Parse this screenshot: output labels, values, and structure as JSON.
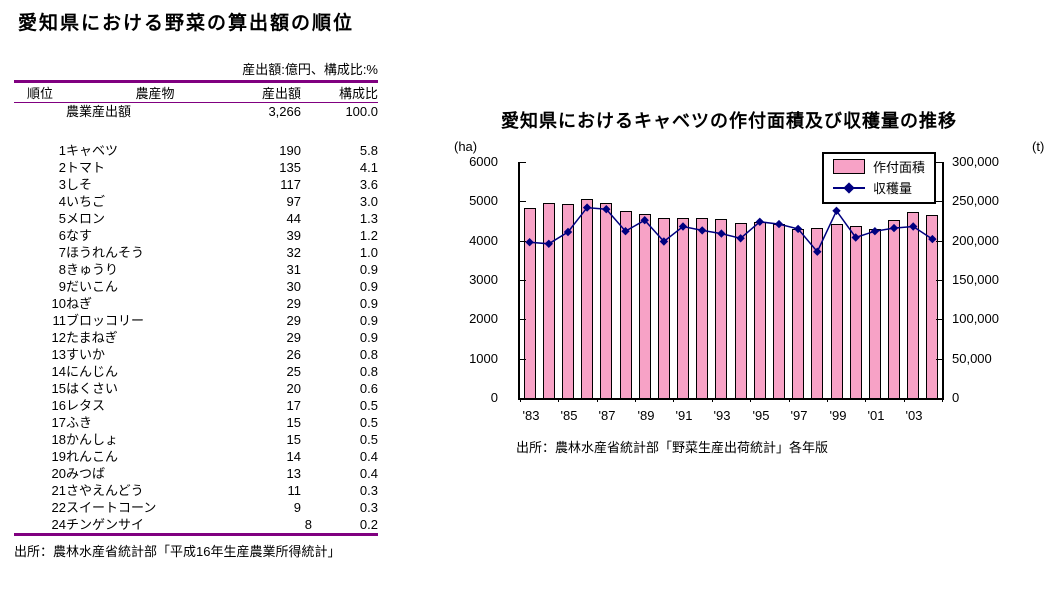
{
  "left_panel": {
    "title": "愛知県における野菜の算出額の順位",
    "units_note": "産出額:億円、構成比:%",
    "table": {
      "headers": [
        "順位",
        "農産物",
        "産出額",
        "構成比"
      ],
      "summary_row": {
        "rank": "",
        "name": "農業産出額",
        "output": "3,266",
        "share": "100.0"
      },
      "rows": [
        {
          "rank": "1",
          "name": "キャベツ",
          "output": "190",
          "share": "5.8"
        },
        {
          "rank": "2",
          "name": "トマト",
          "output": "135",
          "share": "4.1"
        },
        {
          "rank": "3",
          "name": "しそ",
          "output": "117",
          "share": "3.6"
        },
        {
          "rank": "4",
          "name": "いちご",
          "output": "97",
          "share": "3.0"
        },
        {
          "rank": "5",
          "name": "メロン",
          "output": "44",
          "share": "1.3"
        },
        {
          "rank": "6",
          "name": "なす",
          "output": "39",
          "share": "1.2"
        },
        {
          "rank": "7",
          "name": "ほうれんそう",
          "output": "32",
          "share": "1.0"
        },
        {
          "rank": "8",
          "name": "きゅうり",
          "output": "31",
          "share": "0.9"
        },
        {
          "rank": "9",
          "name": "だいこん",
          "output": "30",
          "share": "0.9"
        },
        {
          "rank": "10",
          "name": "ねぎ",
          "output": "29",
          "share": "0.9"
        },
        {
          "rank": "11",
          "name": "ブロッコリー",
          "output": "29",
          "share": "0.9"
        },
        {
          "rank": "12",
          "name": "たまねぎ",
          "output": "29",
          "share": "0.9"
        },
        {
          "rank": "13",
          "name": "すいか",
          "output": "26",
          "share": "0.8"
        },
        {
          "rank": "14",
          "name": "にんじん",
          "output": "25",
          "share": "0.8"
        },
        {
          "rank": "15",
          "name": "はくさい",
          "output": "20",
          "share": "0.6"
        },
        {
          "rank": "16",
          "name": "レタス",
          "output": "17",
          "share": "0.5"
        },
        {
          "rank": "17",
          "name": "ふき",
          "output": "15",
          "share": "0.5"
        },
        {
          "rank": "18",
          "name": "かんしょ",
          "output": "15",
          "share": "0.5"
        },
        {
          "rank": "19",
          "name": "れんこん",
          "output": "14",
          "share": "0.4"
        },
        {
          "rank": "20",
          "name": "みつば",
          "output": "13",
          "share": "0.4"
        },
        {
          "rank": "21",
          "name": "さやえんどう",
          "output": "11",
          "share": "0.3"
        },
        {
          "rank": "22",
          "name": "スイートコーン",
          "output": "9",
          "share": "0.3"
        },
        {
          "rank": "24",
          "name": "チンゲンサイ",
          "output": "8",
          "share": "0.2"
        }
      ],
      "rule_color": "#800080"
    },
    "source": "出所：農林水産省統計部「平成16年生産農業所得統計」"
  },
  "chart": {
    "title": "愛知県におけるキャベツの作付面積及び収穫量の推移",
    "left_axis_unit": "(ha)",
    "right_axis_unit": "(t)",
    "legend": [
      {
        "label": "作付面積",
        "type": "bar"
      },
      {
        "label": "収穫量",
        "type": "line"
      }
    ],
    "source": "出所：農林水産省統計部「野菜生産出荷統計」各年版",
    "colors": {
      "bar_fill": "#F7A2C6",
      "bar_border": "#000000",
      "line": "#000080",
      "rule": "#800080"
    }
  },
  "chart_data": {
    "type": "bar",
    "x": [
      1983,
      1984,
      1985,
      1986,
      1987,
      1988,
      1989,
      1990,
      1991,
      1992,
      1993,
      1994,
      1995,
      1996,
      1997,
      1998,
      1999,
      2000,
      2001,
      2002,
      2003,
      2004
    ],
    "x_tick_labels": [
      "'83",
      "'85",
      "'87",
      "'89",
      "'91",
      "'93",
      "'95",
      "'97",
      "'99",
      "'01",
      "'03"
    ],
    "series": [
      {
        "name": "作付面積",
        "type": "bar",
        "axis": "left",
        "unit": "ha",
        "values": [
          4830,
          4960,
          4930,
          5060,
          4950,
          4760,
          4680,
          4580,
          4570,
          4580,
          4540,
          4450,
          4480,
          4430,
          4300,
          4310,
          4430,
          4380,
          4290,
          4520,
          4740,
          4650
        ]
      },
      {
        "name": "収穫量",
        "type": "line",
        "axis": "right",
        "unit": "t",
        "values": [
          198000,
          196000,
          211000,
          242000,
          240000,
          212000,
          226000,
          199000,
          218000,
          213000,
          209000,
          203000,
          224000,
          221000,
          215000,
          186000,
          238000,
          204000,
          212000,
          216000,
          218000,
          202000
        ]
      }
    ],
    "left_axis": {
      "label": "(ha)",
      "min": 0,
      "max": 6000,
      "step": 1000,
      "tick_labels": [
        "0",
        "1000",
        "2000",
        "3000",
        "4000",
        "5000",
        "6000"
      ]
    },
    "right_axis": {
      "label": "(t)",
      "min": 0,
      "max": 300000,
      "step": 50000,
      "tick_labels": [
        "0",
        "50,000",
        "100,000",
        "150,000",
        "200,000",
        "250,000",
        "300,000"
      ]
    },
    "grid": false,
    "legend_position": "inside-top-right"
  }
}
